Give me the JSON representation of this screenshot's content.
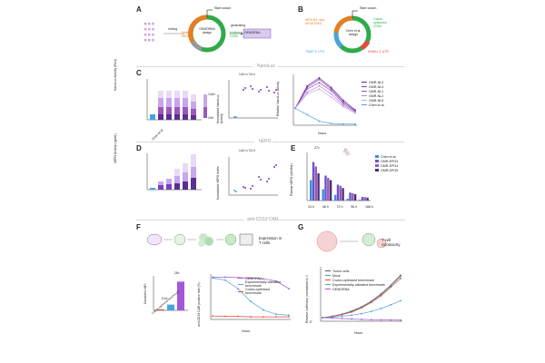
{
  "panel_labels": [
    "A",
    "B",
    "C",
    "D",
    "E",
    "F",
    "G"
  ],
  "panelA": {
    "start_codon": "Start codon",
    "mining": "mining",
    "multiple_ires": "Multiple IRESs",
    "design_label": "GEMORNA design",
    "multiple_cds": "Multiple CDSs",
    "generating": "generating",
    "output_box": "GEMORNA"
  },
  "panelB": {
    "start_codon": "Start codon",
    "ires_label": "iHRV-B3 +Apt-eIF4G IRES",
    "cds_label": "Codon-optimized CDSs",
    "design_label": "Chen et al. design",
    "pabp_label": "PABP 5' UTR",
    "hhba1_label": "HHBA1 3' UTR"
  },
  "sections": {
    "nanoluc": "NanoLuc",
    "hepo": "hEPO",
    "cd19": "anti-CD19 CAR"
  },
  "panelC": {
    "left_ylabel": "NanoLuc Activity (RLU)",
    "left_categories": [
      "Chen et al.",
      "GMR-NL1",
      "GMR-NL2",
      "GMR-NL3",
      "GMR-NL4",
      "GMR-NL5"
    ],
    "left_legend": [
      "144h",
      "24h"
    ],
    "mid_title": "144 h / 24 h",
    "mid_ylabel": "Normalized NanoLuc Activity",
    "mid_categories": [
      "Chen et al.",
      "GMR-NL1",
      "GMR-NL2",
      "GMR-NL3",
      "GMR-NL4",
      "GMR-NL5"
    ],
    "right_ylabel": "Relative NanoLuc activity",
    "right_xlabel": "Hours",
    "right_legend": [
      "GMR-NL3",
      "GMR-NL4",
      "GMR-NL1",
      "GMR-NL2",
      "GMR-NL5",
      "Chen et al."
    ]
  },
  "panelD": {
    "left_ylabel": "hEPO Activity (ng/mL)",
    "left_categories": [
      "Chen et al.",
      "GMR-EPO1",
      "GMR-EPO2",
      "GMR-EPO3",
      "GMR-EPO4",
      "GMR-EPO5"
    ],
    "mid_title": "144 h / 24 h",
    "mid_ylabel": "Normalized hEPO levels"
  },
  "panelE": {
    "ylabel": "Plasma hEPO (mIU/mL)",
    "fold": "27×",
    "legend": [
      "Chen et al.",
      "GMR-EPO3",
      "GMR-EPO4",
      "GMR-EPO5"
    ],
    "legend_colors": [
      "#3a8fe0",
      "#6a54c8",
      "#9b59b6",
      "#4b2f7a"
    ],
    "categories": [
      "24 h",
      "48 h",
      "72 h",
      "96 h",
      "168 h"
    ]
  },
  "panelF": {
    "top_text": "Expression in T cells",
    "bar_ylabel": "Geometric MFI",
    "bar_categories": [
      "Codon-optimized benchmark",
      "Experimentally-validated benchmark",
      "GEMORNA"
    ],
    "bar_values": [
      470,
      2650,
      13200
    ],
    "fold_small": "5.6×",
    "fold_big": "28×",
    "line_ylabel": "anti-CD19 CAR positive rate (%)",
    "line_xlabel": "Hours",
    "line_legend": [
      "GEMORNA",
      "Experimentally-validated benchmark",
      "Codon-optimized benchmark"
    ],
    "line_colors": [
      "#a259d9",
      "#4aa3e0",
      "#e84a3a"
    ]
  },
  "panelG": {
    "top_text": "T-cell cytotoxicity",
    "ylabel": "Relative luciferase (normalized to 0 h)",
    "xlabel": "Hours",
    "legend": [
      "Tumor cells",
      "Mock",
      "Codon-optimized benchmark",
      "Experimentally-validated benchmark",
      "GEMORNA"
    ],
    "legend_colors": [
      "#555555",
      "#3aa0a0",
      "#e84a3a",
      "#4aa3e0",
      "#a259d9"
    ]
  },
  "chart_data": [
    {
      "type": "line",
      "title": "",
      "xlabel": "Hours",
      "ylabel": "Relative NanoLuc activity",
      "x": [
        24,
        48,
        72,
        96,
        120,
        144
      ],
      "series": [
        {
          "name": "GMR-NL3",
          "values": [
            1.0,
            2.4,
            2.9,
            2.3,
            1.5,
            0.9
          ]
        },
        {
          "name": "GMR-NL4",
          "values": [
            1.0,
            2.3,
            2.8,
            2.2,
            1.4,
            0.85
          ]
        },
        {
          "name": "GMR-NL1",
          "values": [
            1.0,
            2.2,
            2.6,
            2.1,
            1.3,
            0.8
          ]
        },
        {
          "name": "GMR-NL2",
          "values": [
            1.0,
            2.0,
            2.4,
            1.9,
            1.2,
            0.75
          ]
        },
        {
          "name": "GMR-NL5",
          "values": [
            1.0,
            1.9,
            2.2,
            1.7,
            1.1,
            0.7
          ]
        },
        {
          "name": "Chen et al.",
          "values": [
            1.0,
            0.6,
            0.2,
            0.05,
            0.02,
            0.01
          ]
        }
      ],
      "ylim": [
        0,
        3
      ]
    },
    {
      "type": "bar",
      "title": "",
      "xlabel": "",
      "ylabel": "Geometric MFI",
      "categories": [
        "Codon-optimized benchmark",
        "Experimentally-validated benchmark",
        "GEMORNA"
      ],
      "values": [
        470,
        2650,
        13200
      ],
      "ylim": [
        0,
        15000
      ]
    },
    {
      "type": "line",
      "title": "",
      "xlabel": "Hours",
      "ylabel": "anti-CD19 CAR positive rate (%)",
      "x": [
        24,
        48,
        72,
        96,
        120,
        144,
        168
      ],
      "series": [
        {
          "name": "GEMORNA",
          "values": [
            97,
            97,
            96,
            95,
            93,
            88,
            70
          ]
        },
        {
          "name": "Experimentally-validated benchmark",
          "values": [
            95,
            90,
            70,
            40,
            20,
            10,
            8
          ]
        },
        {
          "name": "Codon-optimized benchmark",
          "values": [
            6,
            5,
            5,
            4,
            4,
            4,
            4
          ]
        }
      ],
      "ylim": [
        0,
        100
      ]
    },
    {
      "type": "line",
      "title": "",
      "xlabel": "Hours",
      "ylabel": "Relative luciferase (normalized to 0 h)",
      "x": [
        0,
        24,
        48,
        72,
        96,
        120,
        144,
        168,
        192
      ],
      "series": [
        {
          "name": "Tumor cells",
          "values": [
            1,
            1.6,
            2.4,
            3.6,
            5.2,
            7.4,
            10.2,
            13.6,
            17.4
          ]
        },
        {
          "name": "Mock",
          "values": [
            1,
            1.5,
            2.3,
            3.4,
            5.0,
            7.2,
            9.9,
            13.3,
            17.0
          ]
        },
        {
          "name": "Codon-optimized benchmark",
          "values": [
            1,
            1.4,
            2.2,
            3.2,
            4.8,
            6.9,
            9.5,
            12.8,
            16.2
          ]
        },
        {
          "name": "Experimentally-validated benchmark",
          "values": [
            1,
            1.2,
            1.6,
            2.0,
            2.6,
            3.4,
            4.6,
            6.0,
            7.6
          ]
        },
        {
          "name": "GEMORNA",
          "values": [
            1,
            0.9,
            0.7,
            0.5,
            0.35,
            0.25,
            0.18,
            0.12,
            0.1
          ]
        }
      ],
      "ylim": [
        0,
        20
      ]
    },
    {
      "type": "bar",
      "title": "",
      "xlabel": "",
      "ylabel": "Plasma hEPO (mIU/mL)",
      "categories": [
        "24 h",
        "48 h",
        "72 h",
        "96 h",
        "168 h"
      ],
      "series": [
        {
          "name": "Chen et al.",
          "values": [
            900,
            500,
            250,
            80,
            40
          ]
        },
        {
          "name": "GMR-EPO3",
          "values": [
            1700,
            1100,
            700,
            350,
            160
          ]
        },
        {
          "name": "GMR-EPO4",
          "values": [
            1500,
            1000,
            650,
            320,
            150
          ]
        },
        {
          "name": "GMR-EPO5",
          "values": [
            1200,
            900,
            550,
            280,
            130
          ]
        }
      ],
      "ylim": [
        0,
        2000
      ]
    }
  ]
}
